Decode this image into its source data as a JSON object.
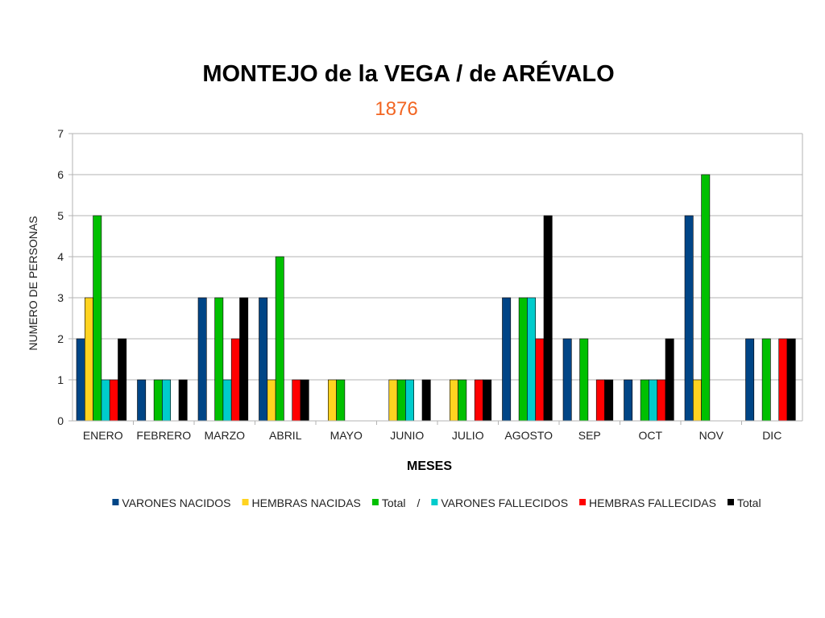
{
  "chart_data": {
    "type": "bar",
    "title": "MONTEJO de la VEGA / de ARÉVALO",
    "subtitle": "1876",
    "subtitle_color": "#f26522",
    "xlabel": "MESES",
    "ylabel": "NUMERO DE PERSONAS",
    "ylim": [
      0,
      7
    ],
    "yticks": [
      0,
      1,
      2,
      3,
      4,
      5,
      6,
      7
    ],
    "grid": true,
    "legend_position": "bottom",
    "legend_separator": "/",
    "categories": [
      "ENERO",
      "FEBRERO",
      "MARZO",
      "ABRIL",
      "MAYO",
      "JUNIO",
      "JULIO",
      "AGOSTO",
      "SEP",
      "OCT",
      "NOV",
      "DIC"
    ],
    "series": [
      {
        "name": "VARONES NACIDOS",
        "color": "#004586",
        "values": [
          2,
          1,
          3,
          3,
          0,
          0,
          0,
          3,
          2,
          1,
          5,
          2
        ]
      },
      {
        "name": "HEMBRAS NACIDAS",
        "color": "#ffd320",
        "values": [
          3,
          0,
          0,
          1,
          1,
          1,
          1,
          0,
          0,
          0,
          1,
          0
        ]
      },
      {
        "name": "Total",
        "color": "#00c000",
        "values": [
          5,
          1,
          3,
          4,
          1,
          1,
          1,
          3,
          2,
          1,
          6,
          2
        ]
      },
      {
        "name": "VARONES FALLECIDOS",
        "color": "#00cccc",
        "values": [
          1,
          1,
          1,
          0,
          0,
          1,
          0,
          3,
          0,
          1,
          0,
          0
        ]
      },
      {
        "name": "HEMBRAS FALLECIDAS",
        "color": "#ff0000",
        "values": [
          1,
          0,
          2,
          1,
          0,
          0,
          1,
          2,
          1,
          1,
          0,
          2
        ]
      },
      {
        "name": "Total",
        "color": "#000000",
        "values": [
          2,
          1,
          3,
          1,
          0,
          1,
          1,
          5,
          1,
          2,
          0,
          2
        ]
      }
    ]
  }
}
